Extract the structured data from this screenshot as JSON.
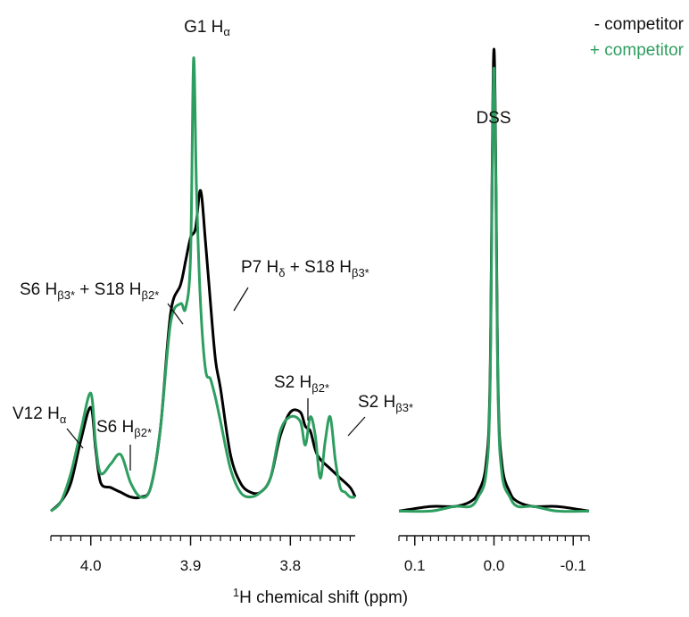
{
  "colors": {
    "minus": "#000000",
    "plus": "#2e9e60",
    "text": "#111111"
  },
  "legend": [
    {
      "text": "- competitor",
      "color": "#000000"
    },
    {
      "text": "+ competitor",
      "color": "#2e9e60"
    }
  ],
  "xlabel": {
    "sup": "1",
    "main": "H chemical shift (ppm)"
  },
  "annotations": {
    "g1": {
      "main": "G1 H",
      "sub": "α",
      "tail": ""
    },
    "s6b3": {
      "main": "S6 H",
      "sub": "β3*",
      "tail": " + S18 H",
      "sub2": "β2*"
    },
    "p7": {
      "main": "P7 H",
      "sub": "δ",
      "tail": " + S18 H",
      "sub2": "β3*"
    },
    "v12": {
      "main": "V12 H",
      "sub": "α",
      "tail": ""
    },
    "s6b2": {
      "main": "S6 H",
      "sub": "β2*",
      "tail": ""
    },
    "s2b2": {
      "main": "S2 H",
      "sub": "β2*",
      "tail": ""
    },
    "s2b3": {
      "main": "S2 H",
      "sub": "β3*",
      "tail": ""
    },
    "dss": {
      "main": "DSS",
      "sub": "",
      "tail": ""
    }
  },
  "chart_data": [
    {
      "type": "line",
      "panel": "left",
      "xlim": [
        4.04,
        3.735
      ],
      "x_reversed": true,
      "ylim": [
        0,
        1
      ],
      "x_ticks": [
        "4.0",
        "3.9",
        "3.8"
      ],
      "x_tick_values": [
        4.0,
        3.9,
        3.8
      ],
      "series": [
        {
          "name": "- competitor",
          "color": "#000000",
          "x": [
            4.04,
            4.03,
            4.02,
            4.01,
            4.0,
            3.995,
            3.99,
            3.98,
            3.97,
            3.96,
            3.95,
            3.94,
            3.93,
            3.92,
            3.91,
            3.905,
            3.9,
            3.895,
            3.89,
            3.885,
            3.88,
            3.875,
            3.87,
            3.86,
            3.85,
            3.84,
            3.83,
            3.82,
            3.81,
            3.8,
            3.79,
            3.785,
            3.78,
            3.775,
            3.77,
            3.76,
            3.75,
            3.74,
            3.735
          ],
          "y": [
            0.02,
            0.04,
            0.08,
            0.17,
            0.24,
            0.15,
            0.08,
            0.07,
            0.06,
            0.05,
            0.05,
            0.07,
            0.2,
            0.44,
            0.5,
            0.55,
            0.6,
            0.62,
            0.7,
            0.59,
            0.46,
            0.34,
            0.28,
            0.14,
            0.08,
            0.06,
            0.06,
            0.09,
            0.18,
            0.23,
            0.23,
            0.2,
            0.19,
            0.15,
            0.13,
            0.11,
            0.09,
            0.07,
            0.05
          ]
        },
        {
          "name": "+ competitor",
          "color": "#2e9e60",
          "x": [
            4.04,
            4.03,
            4.02,
            4.01,
            4.0,
            3.995,
            3.99,
            3.98,
            3.97,
            3.96,
            3.95,
            3.94,
            3.93,
            3.92,
            3.91,
            3.905,
            3.9,
            3.897,
            3.894,
            3.89,
            3.885,
            3.88,
            3.875,
            3.87,
            3.86,
            3.85,
            3.84,
            3.83,
            3.82,
            3.81,
            3.8,
            3.79,
            3.785,
            3.78,
            3.775,
            3.77,
            3.765,
            3.76,
            3.755,
            3.75,
            3.745,
            3.74,
            3.735
          ],
          "y": [
            0.02,
            0.04,
            0.1,
            0.19,
            0.27,
            0.16,
            0.1,
            0.12,
            0.14,
            0.08,
            0.05,
            0.07,
            0.2,
            0.42,
            0.46,
            0.45,
            0.56,
            0.98,
            0.7,
            0.46,
            0.32,
            0.3,
            0.26,
            0.21,
            0.11,
            0.06,
            0.05,
            0.06,
            0.09,
            0.19,
            0.22,
            0.21,
            0.16,
            0.22,
            0.18,
            0.09,
            0.17,
            0.22,
            0.13,
            0.07,
            0.06,
            0.05,
            0.05
          ]
        }
      ]
    },
    {
      "type": "line",
      "panel": "right",
      "xlim": [
        0.12,
        -0.12
      ],
      "x_reversed": true,
      "ylim": [
        0,
        1
      ],
      "x_ticks": [
        "0.1",
        "0.0",
        "-0.1"
      ],
      "x_tick_values": [
        0.1,
        0.0,
        -0.1
      ],
      "series": [
        {
          "name": "- competitor",
          "color": "#000000",
          "x": [
            0.12,
            0.08,
            0.05,
            0.03,
            0.02,
            0.01,
            0.005,
            0.0,
            -0.005,
            -0.01,
            -0.02,
            -0.03,
            -0.05,
            -0.08,
            -0.12
          ],
          "y": [
            0.02,
            0.03,
            0.03,
            0.04,
            0.06,
            0.12,
            0.3,
            1.0,
            0.3,
            0.12,
            0.06,
            0.04,
            0.03,
            0.03,
            0.02
          ]
        },
        {
          "name": "+ competitor",
          "color": "#2e9e60",
          "x": [
            0.12,
            0.08,
            0.05,
            0.03,
            0.02,
            0.01,
            0.005,
            0.0,
            -0.005,
            -0.01,
            -0.02,
            -0.03,
            -0.05,
            -0.08,
            -0.12
          ],
          "y": [
            0.02,
            0.02,
            0.03,
            0.03,
            0.05,
            0.1,
            0.28,
            0.96,
            0.28,
            0.1,
            0.05,
            0.03,
            0.03,
            0.02,
            0.02
          ]
        }
      ]
    }
  ]
}
